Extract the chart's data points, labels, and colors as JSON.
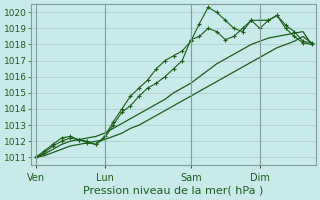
{
  "xlabel": "Pression niveau de la mer( hPa )",
  "ylim": [
    1010.5,
    1020.5
  ],
  "yticks": [
    1011,
    1012,
    1013,
    1014,
    1015,
    1016,
    1017,
    1018,
    1019,
    1020
  ],
  "background_color": "#c8eaea",
  "plot_bg_color": "#c8eaea",
  "grid_color": "#b0c8c8",
  "vline_color": "#889999",
  "line_color": "#1a5e1a",
  "xtick_labels": [
    "Ven",
    "Lun",
    "Sam",
    "Dim"
  ],
  "xtick_positions": [
    0,
    8,
    18,
    26
  ],
  "total_points": 33,
  "xlim": [
    -0.5,
    32.5
  ],
  "lines": [
    [
      1011.0,
      1011.3,
      1011.7,
      1012.0,
      1012.2,
      1012.1,
      1012.0,
      1011.8,
      1012.2,
      1013.0,
      1013.8,
      1014.2,
      1014.8,
      1015.3,
      1015.6,
      1016.0,
      1016.5,
      1017.0,
      1018.3,
      1018.5,
      1019.0,
      1018.8,
      1018.3,
      1018.5,
      1019.0,
      1019.5,
      1019.0,
      1019.5,
      1019.8,
      1019.2,
      1018.8,
      1018.2,
      1018.1
    ],
    [
      1011.0,
      1011.4,
      1011.8,
      1012.2,
      1012.3,
      1012.1,
      1011.9,
      1011.8,
      1012.3,
      1013.2,
      1014.0,
      1014.8,
      1015.3,
      1015.8,
      1016.5,
      1017.0,
      1017.3,
      1017.6,
      1018.2,
      1019.3,
      1020.3,
      1020.0,
      1019.5,
      1019.0,
      1018.8,
      1019.5,
      1019.5,
      1019.5,
      1019.8,
      1019.0,
      1018.5,
      1018.1,
      1018.0
    ],
    [
      1011.0,
      1011.2,
      1011.5,
      1011.8,
      1012.0,
      1012.1,
      1012.2,
      1012.3,
      1012.5,
      1012.8,
      1013.1,
      1013.4,
      1013.7,
      1014.0,
      1014.3,
      1014.6,
      1015.0,
      1015.3,
      1015.6,
      1016.0,
      1016.4,
      1016.8,
      1017.1,
      1017.4,
      1017.7,
      1018.0,
      1018.2,
      1018.4,
      1018.5,
      1018.6,
      1018.7,
      1018.8,
      1018.0
    ],
    [
      1011.0,
      1011.1,
      1011.3,
      1011.5,
      1011.7,
      1011.8,
      1011.9,
      1012.0,
      1012.1,
      1012.3,
      1012.5,
      1012.8,
      1013.0,
      1013.3,
      1013.6,
      1013.9,
      1014.2,
      1014.5,
      1014.8,
      1015.1,
      1015.4,
      1015.7,
      1016.0,
      1016.3,
      1016.6,
      1016.9,
      1017.2,
      1017.5,
      1017.8,
      1018.0,
      1018.2,
      1018.5,
      1018.1
    ]
  ],
  "markers": [
    true,
    true,
    false,
    false
  ],
  "xlabel_fontsize": 8.0,
  "ytick_fontsize": 6.5,
  "xtick_fontsize": 7.0,
  "tick_font_color": "#1a5e1a",
  "ylabel_color": "#1a5e1a"
}
